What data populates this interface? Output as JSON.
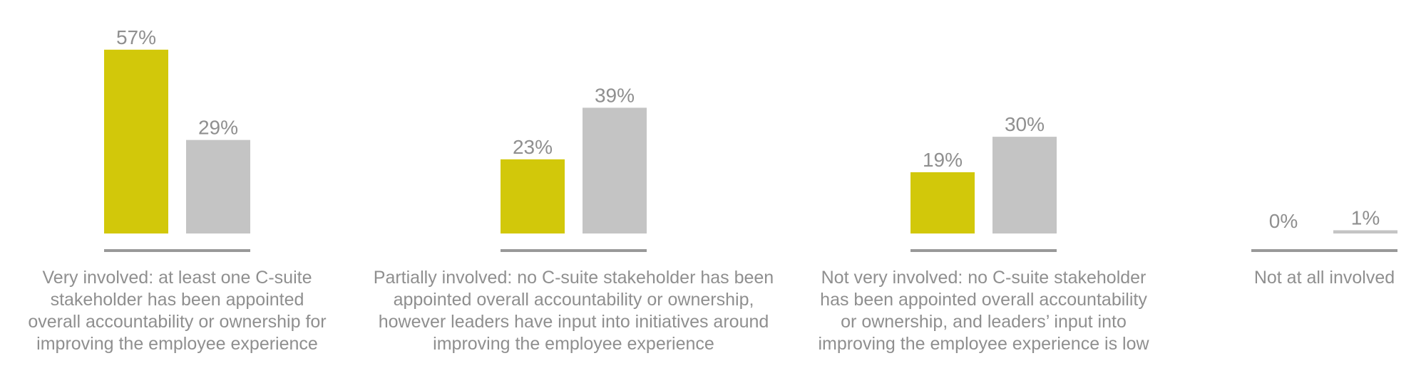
{
  "chart_data": {
    "type": "bar",
    "categories": [
      [
        "Very involved: at least one C-suite",
        "stakeholder has been appointed",
        "overall accountability or ownership for",
        "improving the employee experience"
      ],
      [
        "Partially involved: no C-suite stakeholder has been",
        "appointed overall accountability or ownership,",
        "however leaders have input into initiatives around",
        "improving the employee experience"
      ],
      [
        "Not very involved: no C-suite stakeholder",
        "has been appointed overall accountability",
        "or ownership, and leaders’ input into",
        "improving the employee experience is low"
      ],
      [
        "Not at all involved"
      ]
    ],
    "series": [
      {
        "values": [
          57,
          23,
          19,
          0
        ],
        "labels": [
          "57%",
          "23%",
          "19%",
          "0%"
        ],
        "color": "#d2c80a"
      },
      {
        "values": [
          29,
          39,
          30,
          1
        ],
        "labels": [
          "29%",
          "39%",
          "30%",
          "1%"
        ],
        "color": "#c4c4c4"
      }
    ],
    "ylim": [
      0,
      60
    ],
    "axis_color": "#999999",
    "text_color": "#8f8f8f",
    "title": "",
    "xlabel": "",
    "ylabel": ""
  }
}
